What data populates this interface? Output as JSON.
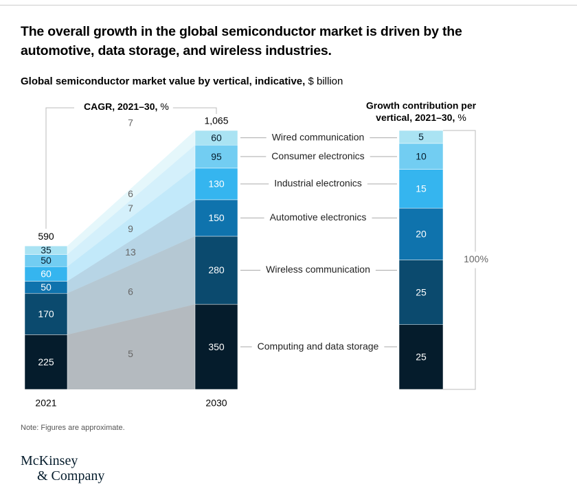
{
  "header": {
    "title": [
      "The overall growth in the global semiconductor market is driven by the",
      "automotive, data storage, and wireless industries."
    ],
    "subtitle": "Global semiconductor market value by vertical, indicative,",
    "subtitle_unit": "$ billion"
  },
  "chart_data": [
    {
      "type": "stacked-bar-flow",
      "categories": [
        "2021",
        "2030"
      ],
      "cagr_title": "CAGR, 2021–30,",
      "cagr_unit": "%",
      "total_cagr": 7,
      "totals": {
        "values": [
          590,
          1065
        ],
        "value_labels": [
          "590",
          "1,065"
        ]
      },
      "series": [
        {
          "name": "Computing and data storage",
          "color": "#051c2c",
          "values": [
            225,
            350
          ],
          "cagr": 5
        },
        {
          "name": "Wireless communication",
          "color": "#0b4a6e",
          "values": [
            170,
            280
          ],
          "cagr": 6
        },
        {
          "name": "Automotive electronics",
          "color": "#0f73ad",
          "values": [
            50,
            150
          ],
          "cagr": 13
        },
        {
          "name": "Industrial electronics",
          "color": "#35b5ef",
          "values": [
            60,
            130
          ],
          "cagr": 9
        },
        {
          "name": "Consumer electronics",
          "color": "#72cdf2",
          "values": [
            50,
            95
          ],
          "cagr": 7
        },
        {
          "name": "Wired communication",
          "color": "#aae3f3",
          "values": [
            35,
            60
          ],
          "cagr": 6
        }
      ]
    },
    {
      "type": "stacked-bar",
      "title": [
        "Growth contribution per",
        "vertical, 2021–30,"
      ],
      "unit": "%",
      "values": [
        25,
        25,
        20,
        15,
        10,
        5
      ],
      "colors": [
        "#051c2c",
        "#0b4a6e",
        "#0f73ad",
        "#35b5ef",
        "#72cdf2",
        "#aae3f3"
      ],
      "total": {
        "value": 100,
        "label": "100%"
      }
    }
  ],
  "footer": {
    "note": "Note: Figures are approximate.",
    "logo": [
      "McKinsey",
      "& Company"
    ]
  }
}
